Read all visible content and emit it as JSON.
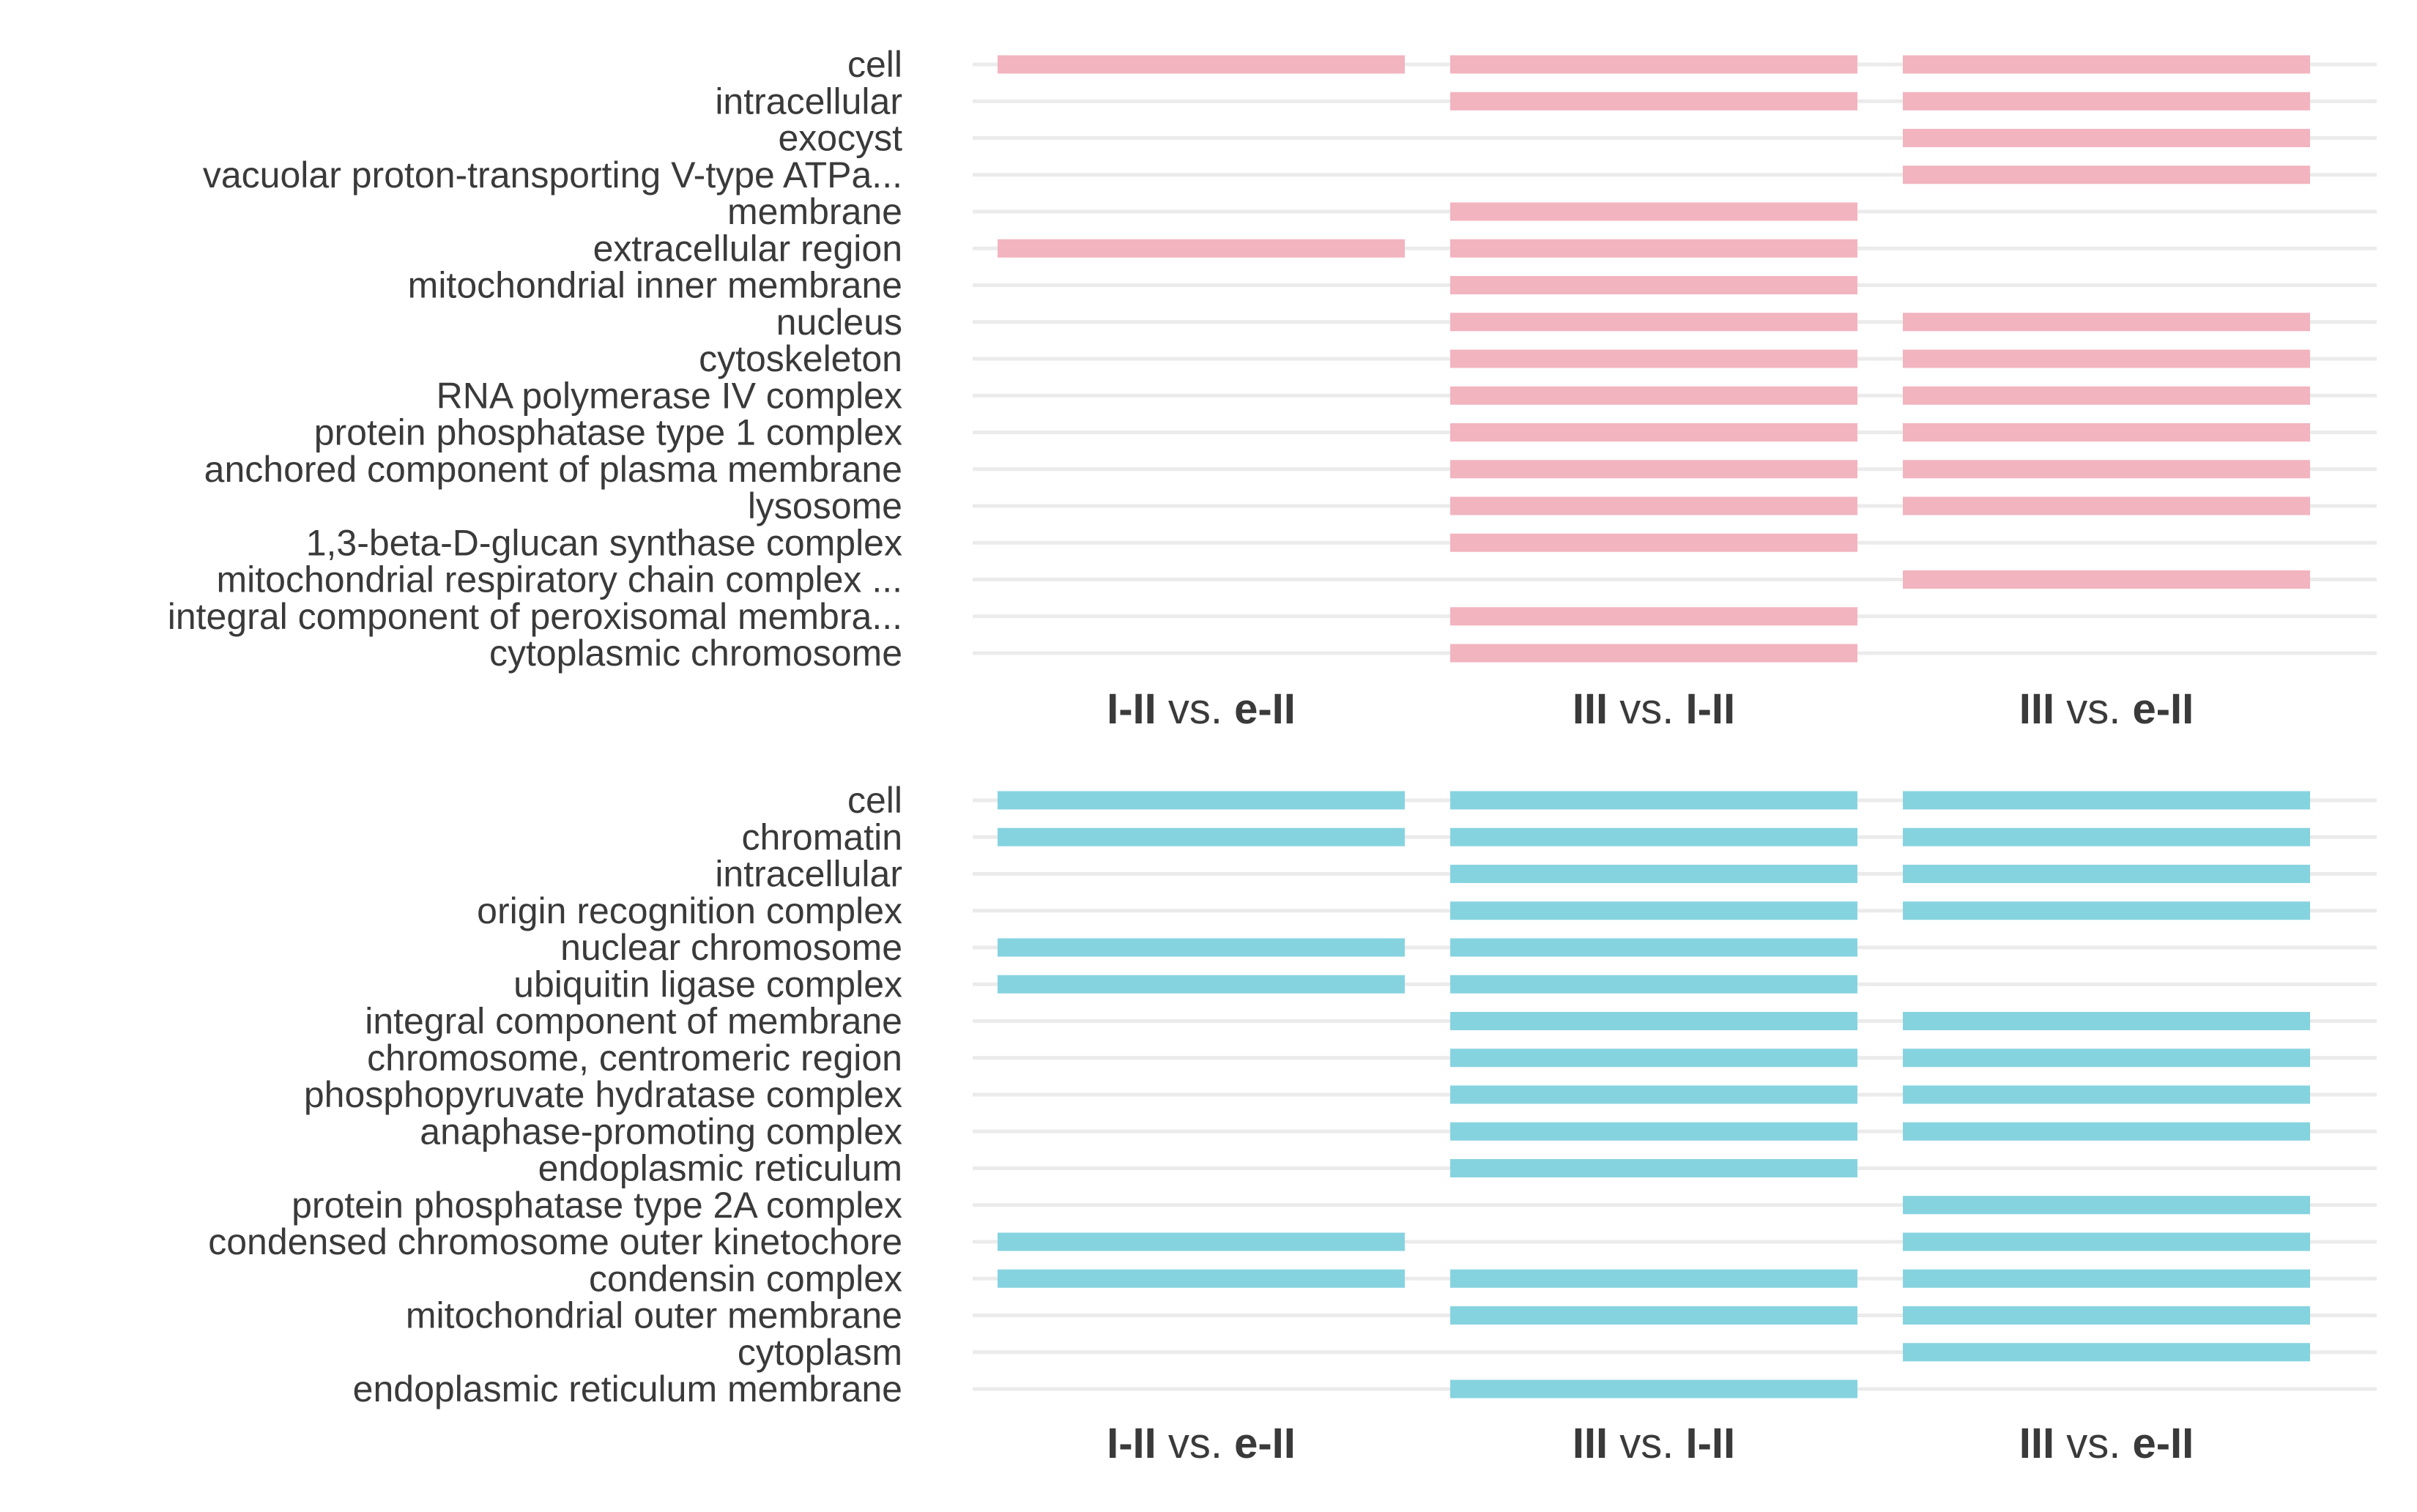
{
  "chart_data": [
    {
      "type": "bar",
      "orientation": "horizontal-presence",
      "panel": "top",
      "color": "#f2b4bf",
      "grid_color": "#ebebeb",
      "text_color": "#3a3a3a",
      "columns": [
        {
          "parts": [
            {
              "text": "I-II",
              "bold": true
            },
            {
              "text": " vs. ",
              "bold": false
            },
            {
              "text": "e-II",
              "bold": true
            }
          ]
        },
        {
          "parts": [
            {
              "text": "III",
              "bold": true
            },
            {
              "text": " vs. ",
              "bold": false
            },
            {
              "text": "I-II",
              "bold": true
            }
          ]
        },
        {
          "parts": [
            {
              "text": "III",
              "bold": true
            },
            {
              "text": " vs. ",
              "bold": false
            },
            {
              "text": "e-II",
              "bold": true
            }
          ]
        }
      ],
      "categories": [
        "cell",
        "intracellular",
        "exocyst",
        "vacuolar proton-transporting V-type ATPa...",
        "membrane",
        "extracellular region",
        "mitochondrial inner membrane",
        "nucleus",
        "cytoskeleton",
        "RNA polymerase IV complex",
        "protein phosphatase type 1 complex",
        "anchored component of plasma membrane",
        "lysosome",
        "1,3-beta-D-glucan synthase complex",
        "mitochondrial respiratory chain complex ...",
        "integral component of peroxisomal membra...",
        "cytoplasmic chromosome"
      ],
      "presence": [
        [
          1,
          1,
          1
        ],
        [
          0,
          1,
          1
        ],
        [
          0,
          0,
          1
        ],
        [
          0,
          0,
          1
        ],
        [
          0,
          1,
          0
        ],
        [
          1,
          1,
          0
        ],
        [
          0,
          1,
          0
        ],
        [
          0,
          1,
          1
        ],
        [
          0,
          1,
          1
        ],
        [
          0,
          1,
          1
        ],
        [
          0,
          1,
          1
        ],
        [
          0,
          1,
          1
        ],
        [
          0,
          1,
          1
        ],
        [
          0,
          1,
          0
        ],
        [
          0,
          0,
          1
        ],
        [
          0,
          1,
          0
        ],
        [
          0,
          1,
          0
        ]
      ]
    },
    {
      "type": "bar",
      "orientation": "horizontal-presence",
      "panel": "bottom",
      "color": "#86d3e0",
      "grid_color": "#ebebeb",
      "text_color": "#3a3a3a",
      "columns": [
        {
          "parts": [
            {
              "text": "I-II",
              "bold": true
            },
            {
              "text": " vs. ",
              "bold": false
            },
            {
              "text": "e-II",
              "bold": true
            }
          ]
        },
        {
          "parts": [
            {
              "text": "III",
              "bold": true
            },
            {
              "text": " vs. ",
              "bold": false
            },
            {
              "text": "I-II",
              "bold": true
            }
          ]
        },
        {
          "parts": [
            {
              "text": "III",
              "bold": true
            },
            {
              "text": " vs. ",
              "bold": false
            },
            {
              "text": "e-II",
              "bold": true
            }
          ]
        }
      ],
      "categories": [
        "cell",
        "chromatin",
        "intracellular",
        "origin recognition complex",
        "nuclear chromosome",
        "ubiquitin ligase complex",
        "integral component of membrane",
        "chromosome, centromeric region",
        "phosphopyruvate hydratase complex",
        "anaphase-promoting complex",
        "endoplasmic reticulum",
        "protein phosphatase type 2A complex",
        "condensed chromosome outer kinetochore",
        "condensin complex",
        "mitochondrial outer membrane",
        "cytoplasm",
        "endoplasmic reticulum membrane"
      ],
      "presence": [
        [
          1,
          1,
          1
        ],
        [
          1,
          1,
          1
        ],
        [
          0,
          1,
          1
        ],
        [
          0,
          1,
          1
        ],
        [
          1,
          1,
          0
        ],
        [
          1,
          1,
          0
        ],
        [
          0,
          1,
          1
        ],
        [
          0,
          1,
          1
        ],
        [
          0,
          1,
          1
        ],
        [
          0,
          1,
          1
        ],
        [
          0,
          1,
          0
        ],
        [
          0,
          0,
          1
        ],
        [
          1,
          0,
          1
        ],
        [
          1,
          1,
          1
        ],
        [
          0,
          1,
          1
        ],
        [
          0,
          0,
          1
        ],
        [
          0,
          1,
          0
        ]
      ]
    }
  ]
}
